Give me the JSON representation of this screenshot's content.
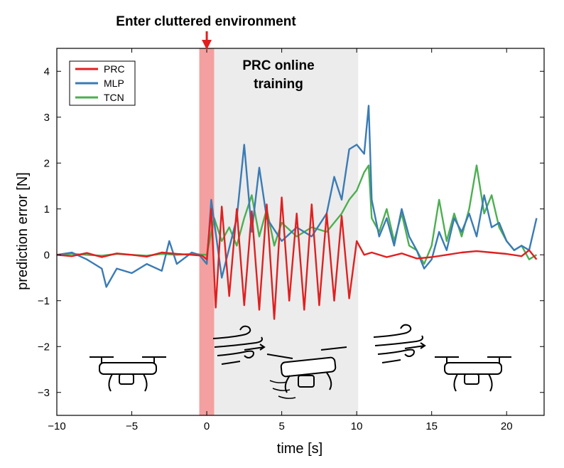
{
  "chart_data": {
    "type": "line",
    "title": "",
    "xlabel": "time [s]",
    "ylabel": "prediction error [N]",
    "xlim": [
      -10,
      22.5
    ],
    "ylim": [
      -3.5,
      4.5
    ],
    "xticks": [
      -10,
      -5,
      0,
      5,
      10,
      15,
      20
    ],
    "yticks": [
      -3,
      -2,
      -1,
      0,
      1,
      2,
      3,
      4
    ],
    "xtick_labels": [
      "−10",
      "−5",
      "0",
      "5",
      "10",
      "15",
      "20"
    ],
    "ytick_labels": [
      "−3",
      "−2",
      "−1",
      "0",
      "1",
      "2",
      "3",
      "4"
    ],
    "grid": false,
    "legend_position": "top-left",
    "annotations": {
      "top_label": "Enter cluttered environment",
      "training_label_line1": "PRC online",
      "training_label_line2": "training"
    },
    "regions": [
      {
        "name": "enter",
        "x_start": -0.5,
        "x_end": 0.5,
        "color": "#f4a0a0"
      },
      {
        "name": "training",
        "x_start": 0.5,
        "x_end": 10.1,
        "color": "#ececec"
      }
    ],
    "arrow_x": 0,
    "series": [
      {
        "name": "PRC",
        "color": "#e02020",
        "x": [
          -10,
          -9,
          -8,
          -7,
          -6,
          -5,
          -4,
          -3,
          -2,
          -1,
          -0.3,
          0,
          0.3,
          0.6,
          1,
          1.5,
          2,
          2.5,
          3,
          3.5,
          4,
          4.5,
          5,
          5.5,
          6,
          6.5,
          7,
          7.5,
          8,
          8.5,
          9,
          9.5,
          10,
          10.5,
          11,
          12,
          13,
          14,
          15,
          16,
          17,
          18,
          19,
          20,
          21,
          21.5,
          22
        ],
        "y": [
          0.0,
          -0.03,
          0.04,
          -0.05,
          0.03,
          0.0,
          -0.04,
          0.05,
          0.02,
          0.0,
          -0.02,
          -0.1,
          1.0,
          -1.15,
          1.05,
          -0.9,
          1.0,
          -1.1,
          0.95,
          -1.2,
          1.1,
          -1.4,
          1.25,
          -1.0,
          0.9,
          -1.2,
          1.1,
          -1.1,
          0.9,
          -1.0,
          0.85,
          -0.95,
          0.3,
          0.0,
          0.05,
          -0.05,
          0.03,
          -0.08,
          -0.05,
          0.0,
          0.05,
          0.08,
          0.05,
          0.02,
          -0.03,
          0.1,
          -0.1
        ]
      },
      {
        "name": "MLP",
        "color": "#3a7bb5",
        "x": [
          -10,
          -9,
          -8,
          -7,
          -6.7,
          -6,
          -5,
          -4,
          -3,
          -2.5,
          -2,
          -1,
          -0.5,
          0,
          0.3,
          1,
          2,
          2.5,
          3,
          3.5,
          4,
          5,
          6,
          7,
          8,
          8.5,
          9,
          9.5,
          10,
          10.5,
          10.8,
          11,
          11.5,
          12,
          12.5,
          13,
          13.5,
          14,
          14.5,
          15,
          15.5,
          16,
          16.5,
          17,
          17.5,
          18,
          18.5,
          19,
          19.5,
          20,
          20.5,
          21,
          21.5,
          22
        ],
        "y": [
          0.0,
          0.05,
          -0.1,
          -0.3,
          -0.7,
          -0.3,
          -0.4,
          -0.2,
          -0.35,
          0.3,
          -0.2,
          0.05,
          0.0,
          -0.2,
          1.2,
          -0.5,
          0.8,
          2.4,
          0.5,
          1.9,
          0.8,
          0.3,
          0.6,
          0.4,
          0.9,
          1.7,
          1.2,
          2.3,
          2.4,
          2.2,
          3.25,
          1.2,
          0.4,
          0.8,
          0.2,
          1.0,
          0.4,
          0.1,
          -0.3,
          -0.1,
          0.5,
          0.1,
          0.8,
          0.5,
          0.9,
          0.4,
          1.3,
          0.6,
          0.7,
          0.3,
          0.1,
          0.2,
          0.1,
          0.8
        ]
      },
      {
        "name": "TCN",
        "color": "#4caf50",
        "x": [
          -10,
          -9,
          -8,
          -7,
          -6,
          -5,
          -4,
          -3,
          -2,
          -1,
          0,
          0.5,
          1,
          1.5,
          2,
          2.5,
          3,
          3.5,
          4,
          4.5,
          5,
          6,
          7,
          8,
          9,
          9.5,
          10,
          10.5,
          10.8,
          11,
          11.5,
          12,
          12.5,
          13,
          13.5,
          14,
          14.5,
          15,
          15.5,
          16,
          16.5,
          17,
          17.5,
          18,
          18.5,
          19,
          19.5,
          20,
          20.5,
          21,
          21.5,
          22
        ],
        "y": [
          0.0,
          0.02,
          0.0,
          -0.02,
          0.02,
          0.0,
          -0.02,
          0.02,
          0.0,
          0.02,
          0.0,
          0.8,
          0.3,
          0.6,
          0.2,
          0.8,
          1.3,
          0.4,
          1.0,
          0.2,
          0.7,
          0.4,
          0.6,
          0.5,
          0.9,
          1.2,
          1.4,
          1.8,
          1.95,
          0.8,
          0.5,
          1.0,
          0.3,
          0.9,
          0.2,
          0.1,
          -0.2,
          0.2,
          1.2,
          0.3,
          0.9,
          0.4,
          1.0,
          1.95,
          0.9,
          1.3,
          0.6,
          0.3,
          0.1,
          0.2,
          -0.1,
          0.0
        ]
      }
    ]
  }
}
